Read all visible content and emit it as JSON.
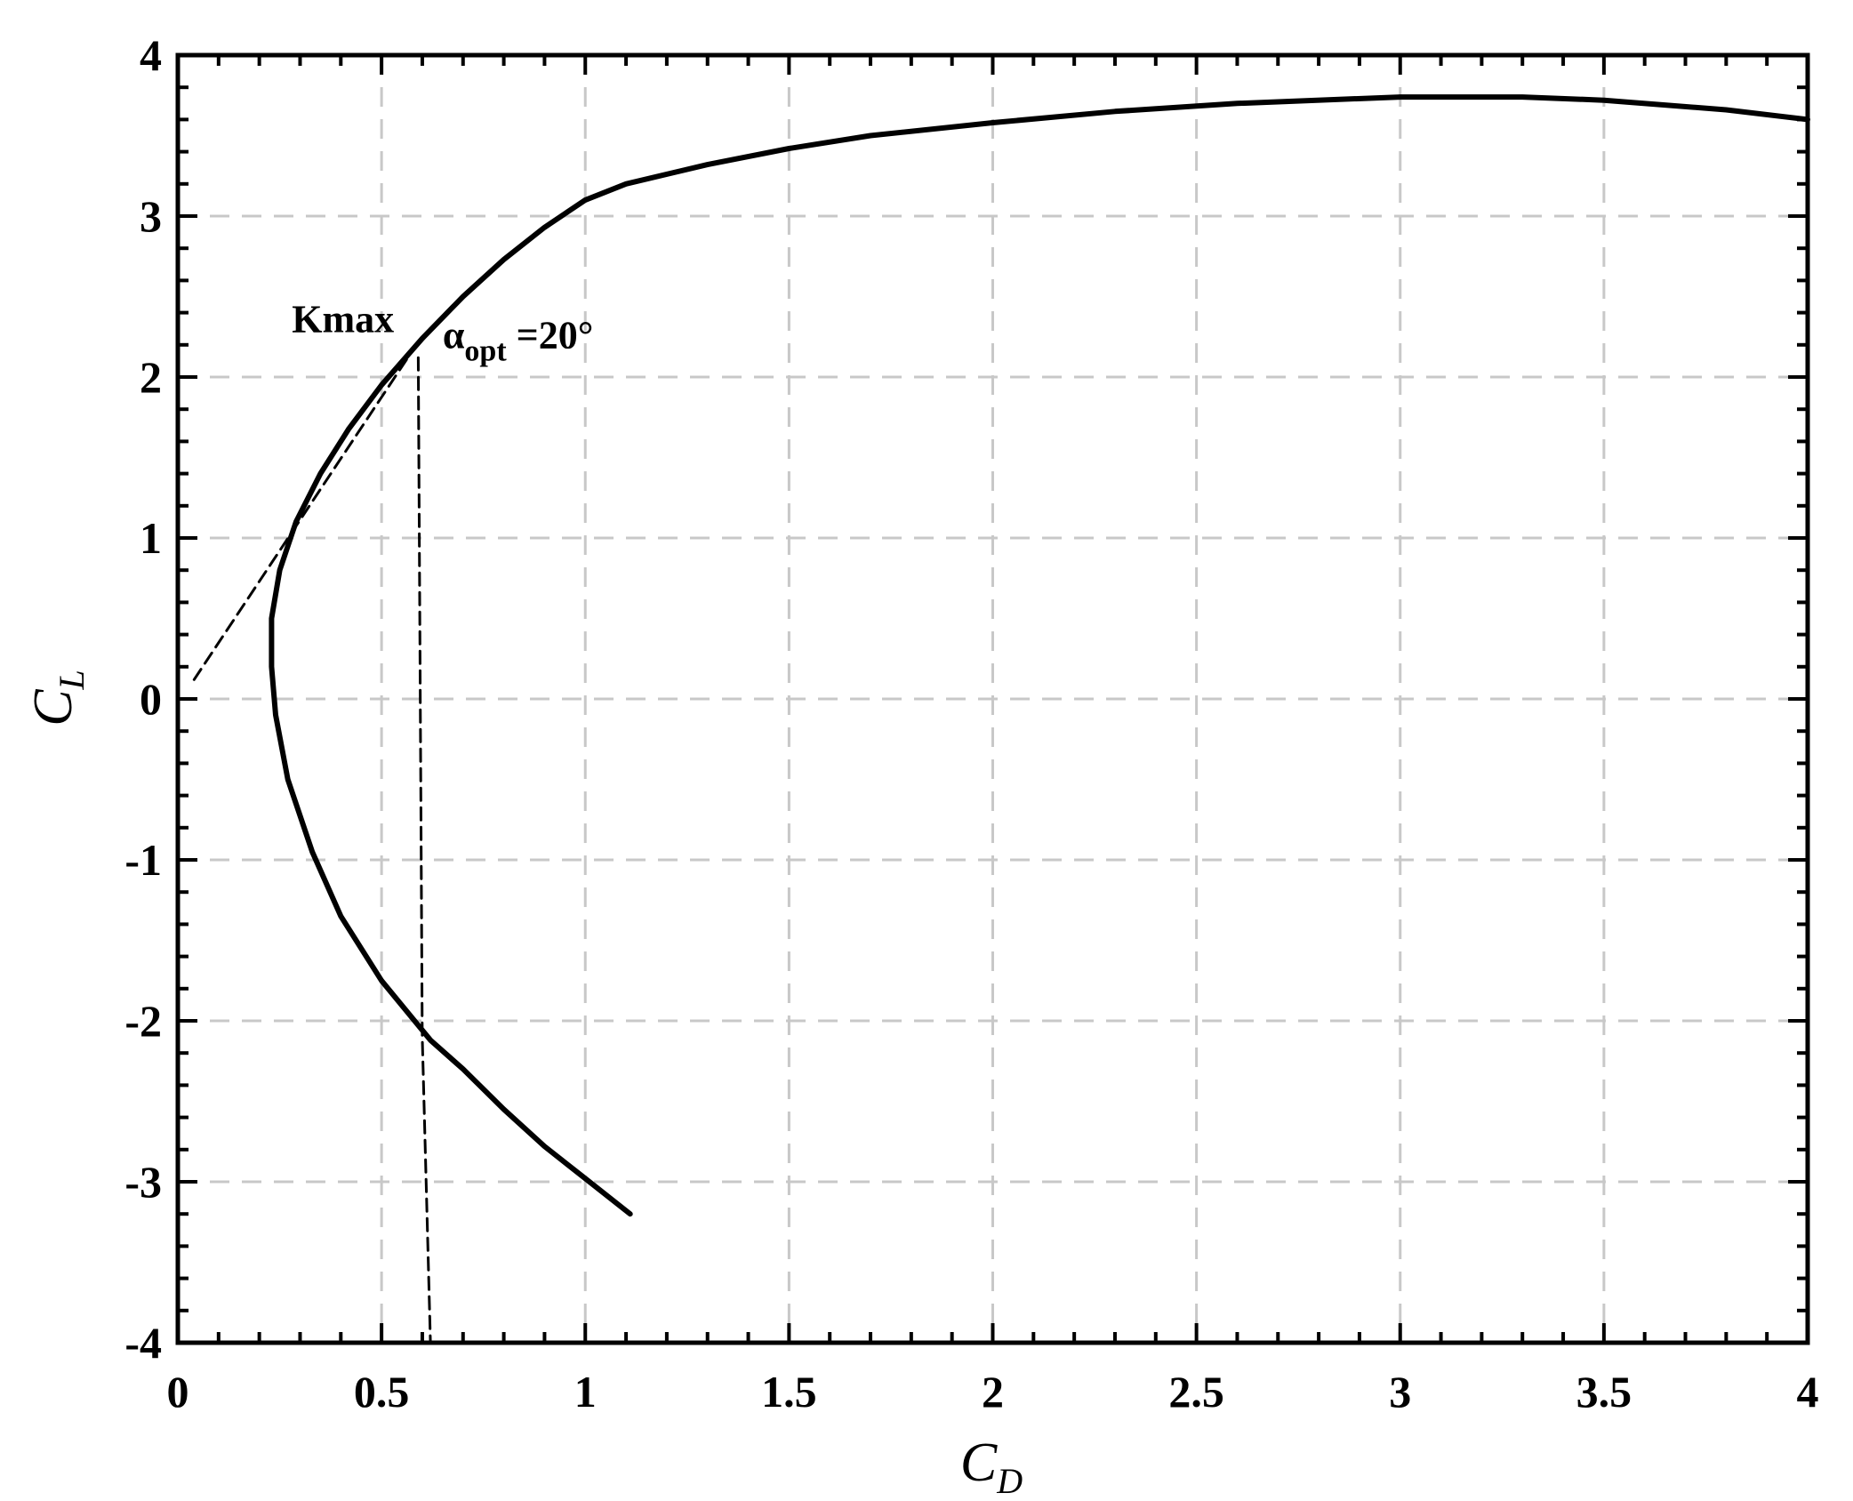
{
  "chart_data": {
    "type": "line",
    "xlabel": {
      "main": "C",
      "sub": "D"
    },
    "ylabel": {
      "main": "C",
      "sub": "L"
    },
    "xlim": [
      0,
      4
    ],
    "ylim": [
      -4,
      4
    ],
    "x_ticks": [
      0,
      0.5,
      1,
      1.5,
      2,
      2.5,
      3,
      3.5,
      4
    ],
    "x_tick_labels": [
      "0",
      "0.5",
      "1",
      "1.5",
      "2",
      "2.5",
      "3",
      "3.5",
      "4"
    ],
    "y_ticks": [
      -4,
      -3,
      -2,
      -1,
      0,
      1,
      2,
      3,
      4
    ],
    "y_tick_labels": [
      "-4",
      "-3",
      "-2",
      "-1",
      "0",
      "1",
      "2",
      "3",
      "4"
    ],
    "grid": true,
    "grid_style": "dashed",
    "colors": {
      "curve": "#000000",
      "grid": "#c8c8c8",
      "axes": "#000000"
    },
    "series": [
      {
        "style": "solid",
        "x": [
          1.11,
          1.0,
          0.9,
          0.8,
          0.7,
          0.62,
          0.5,
          0.4,
          0.33,
          0.27,
          0.24,
          0.23,
          0.23,
          0.25,
          0.29,
          0.35,
          0.42,
          0.5,
          0.6,
          0.7,
          0.8,
          0.9,
          1.0,
          1.1,
          1.3,
          1.5,
          1.7,
          2.0,
          2.3,
          2.6,
          3.0,
          3.3,
          3.5,
          3.8,
          4.0
        ],
        "y": [
          -3.2,
          -2.98,
          -2.78,
          -2.55,
          -2.3,
          -2.12,
          -1.75,
          -1.35,
          -0.95,
          -0.5,
          -0.1,
          0.2,
          0.5,
          0.8,
          1.1,
          1.4,
          1.68,
          1.95,
          2.24,
          2.5,
          2.73,
          2.93,
          3.1,
          3.2,
          3.32,
          3.42,
          3.5,
          3.58,
          3.65,
          3.7,
          3.74,
          3.74,
          3.72,
          3.66,
          3.6
        ]
      },
      {
        "style": "dashed",
        "x": [
          0.04,
          0.58
        ],
        "y": [
          0.12,
          2.18
        ]
      },
      {
        "style": "dashed",
        "x": [
          0.59,
          0.6,
          0.62
        ],
        "y": [
          2.12,
          -2.1,
          -4.0
        ]
      }
    ],
    "annotations": [
      {
        "text": "Kmax",
        "x": 0.28,
        "y": 2.28
      },
      {
        "text_main": "α",
        "text_sub": "opt",
        "text_tail": " =20°",
        "x": 0.65,
        "y": 2.18
      }
    ]
  }
}
